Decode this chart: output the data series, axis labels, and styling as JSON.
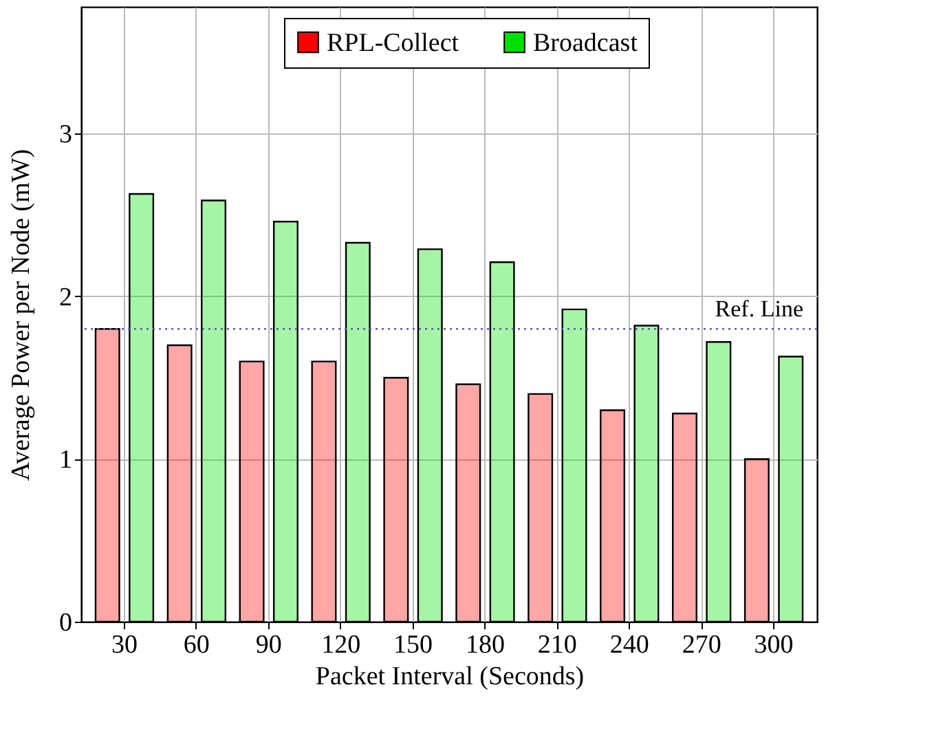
{
  "chart_data": {
    "type": "bar",
    "xlabel": "Packet Interval (Seconds)",
    "ylabel": "Average Power per Node (mW)",
    "categories": [
      "30",
      "60",
      "90",
      "120",
      "150",
      "180",
      "210",
      "240",
      "270",
      "300"
    ],
    "series": [
      {
        "name": "RPL-Collect",
        "color": "#ff0000",
        "values": [
          1.8,
          1.7,
          1.6,
          1.6,
          1.5,
          1.46,
          1.4,
          1.3,
          1.28,
          1.0
        ]
      },
      {
        "name": "Broadcast",
        "color": "#00e000",
        "values": [
          2.63,
          2.59,
          2.46,
          2.33,
          2.29,
          2.21,
          1.92,
          1.82,
          1.72,
          1.63
        ]
      }
    ],
    "ylim": [
      0,
      3.78
    ],
    "yticks": [
      0,
      1,
      2,
      3
    ],
    "grid": true,
    "legend": "top",
    "ref_lines": [
      {
        "axis": "y",
        "value": 1.8,
        "label": "Ref. Line",
        "color": "#5b5bb0",
        "line_style": "dotted"
      }
    ]
  }
}
